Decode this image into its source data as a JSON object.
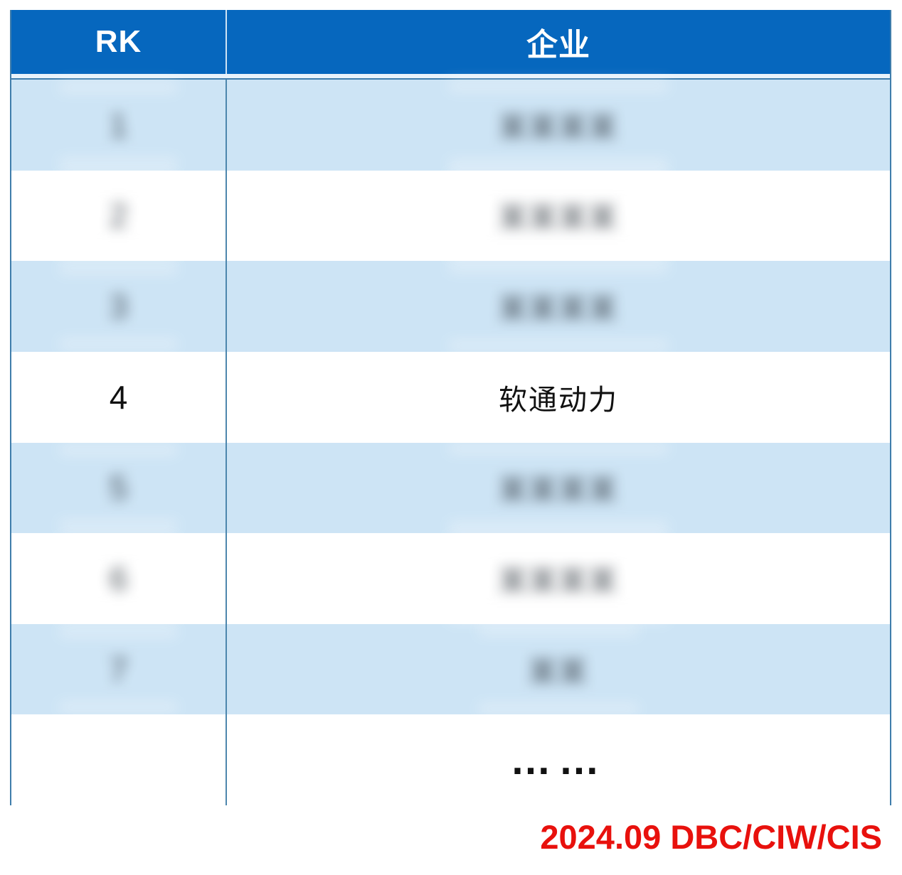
{
  "chart_data": {
    "type": "table",
    "columns": [
      "RK",
      "企业"
    ],
    "rows": [
      [
        "1",
        "(blurred)"
      ],
      [
        "2",
        "(blurred)"
      ],
      [
        "3",
        "(blurred)"
      ],
      [
        "4",
        "软通动力"
      ],
      [
        "5",
        "(blurred)"
      ],
      [
        "6",
        "(blurred)"
      ],
      [
        "7",
        "(blurred)"
      ],
      [
        "",
        "……"
      ]
    ],
    "caption": "2024.09 DBC/CIW/CIS",
    "layout": {
      "header_position": "top",
      "zebra_striping": true,
      "grid": "column-divider-only"
    }
  },
  "table": {
    "header": {
      "rank_label": "RK",
      "company_label": "企业"
    },
    "rows": [
      {
        "rank": "1",
        "rank_blurred": true,
        "company": "",
        "company_blurred": true,
        "company_placeholder": "某某某某"
      },
      {
        "rank": "2",
        "rank_blurred": true,
        "company": "",
        "company_blurred": true,
        "company_placeholder": "某某某某"
      },
      {
        "rank": "3",
        "rank_blurred": true,
        "company": "",
        "company_blurred": true,
        "company_placeholder": "某某某某"
      },
      {
        "rank": "4",
        "rank_blurred": false,
        "company": "软通动力",
        "company_blurred": false,
        "company_placeholder": ""
      },
      {
        "rank": "5",
        "rank_blurred": true,
        "company": "",
        "company_blurred": true,
        "company_placeholder": "某某某某"
      },
      {
        "rank": "6",
        "rank_blurred": true,
        "company": "",
        "company_blurred": true,
        "company_placeholder": "某某某某"
      },
      {
        "rank": "7",
        "rank_blurred": true,
        "company": "",
        "company_blurred": true,
        "company_placeholder": "某某"
      },
      {
        "rank": "",
        "rank_blurred": false,
        "company": "……",
        "company_blurred": false,
        "company_placeholder": "",
        "is_ellipsis": true
      }
    ]
  },
  "footer": {
    "caption": "2024.09 DBC/CIW/CIS"
  },
  "colors": {
    "header_bg": "#0667BE",
    "header_text": "#FFFFFF",
    "alt_row_bg": "#CDE4F5",
    "row_bg": "#FFFFFF",
    "border": "#3F7DAB",
    "column_divider": "#4D86AD",
    "header_divider": "#CFE4F4",
    "caption_red": "#E8110D",
    "body_text": "#111111"
  }
}
